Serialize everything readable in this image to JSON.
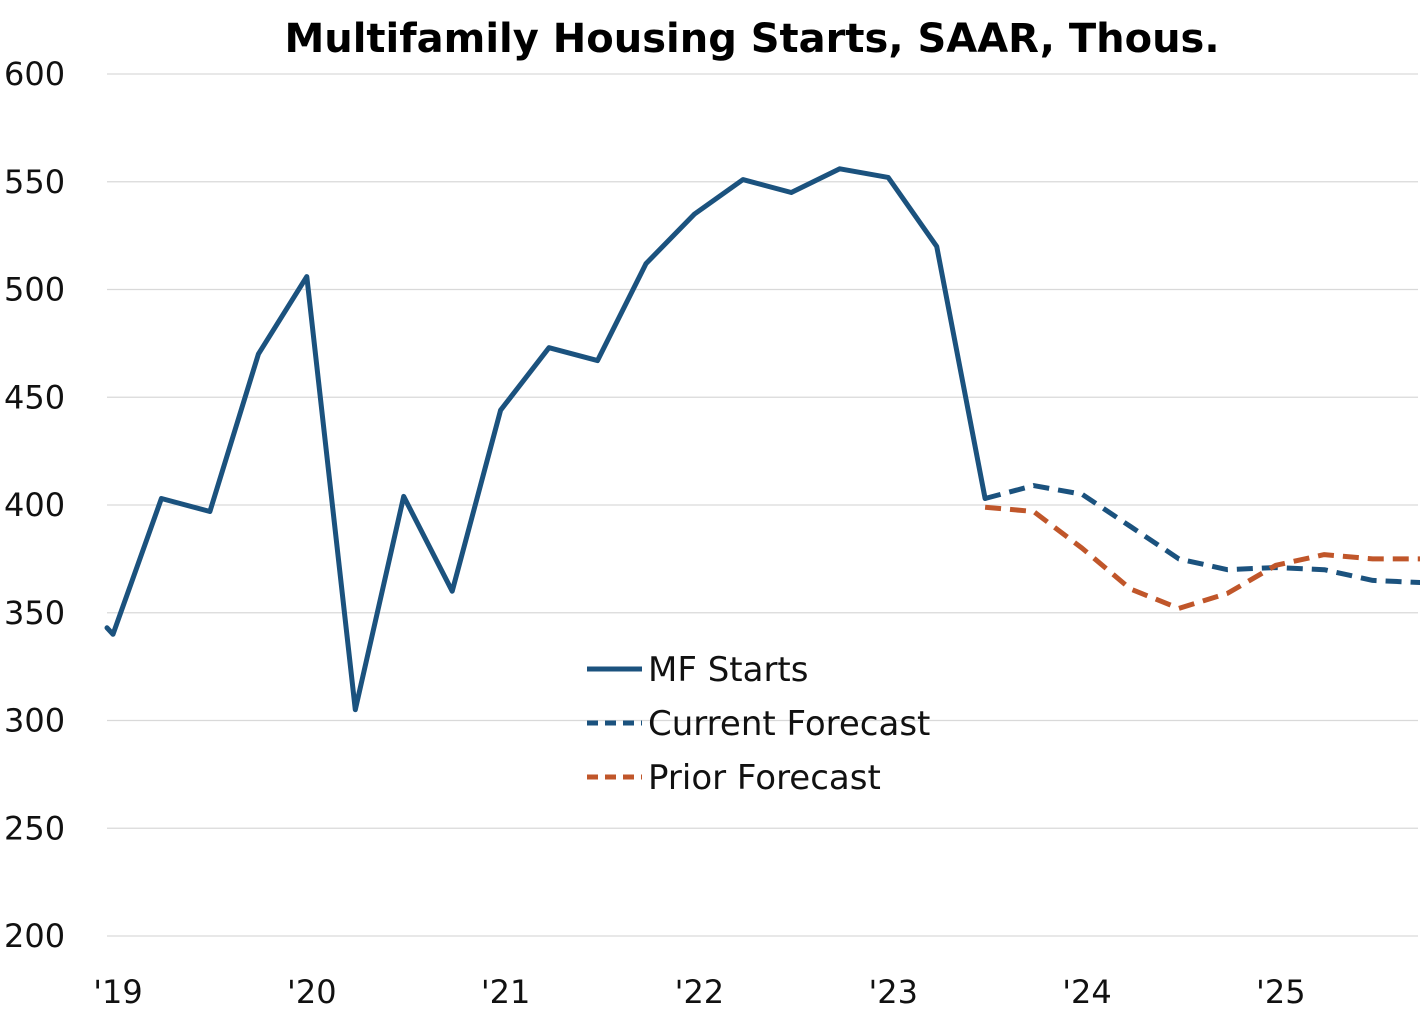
{
  "chart_data": {
    "type": "line",
    "title": "Multifamily Housing Starts, SAAR, Thous.",
    "xlabel": "",
    "ylabel": "",
    "ylim": [
      200,
      600
    ],
    "yticks": [
      200,
      250,
      300,
      350,
      400,
      450,
      500,
      550,
      600
    ],
    "ytick_labels": [
      "200",
      "250",
      "300",
      "350",
      "400",
      "450",
      "500",
      "550",
      "600"
    ],
    "xlim": [
      "2019 Q1",
      "2025 Q4"
    ],
    "xticks": [
      {
        "label": "'19",
        "quarter_index": 0
      },
      {
        "label": "'20",
        "quarter_index": 4
      },
      {
        "label": "'21",
        "quarter_index": 8
      },
      {
        "label": "'22",
        "quarter_index": 12
      },
      {
        "label": "'23",
        "quarter_index": 16
      },
      {
        "label": "'24",
        "quarter_index": 20
      },
      {
        "label": "'25",
        "quarter_index": 24
      }
    ],
    "grid": true,
    "legend_position": "center",
    "series": [
      {
        "name": "MF Starts",
        "style": "solid",
        "color": "#1b527e",
        "points": [
          {
            "x": "2019 Q1",
            "y": 340
          },
          {
            "x": "2019 Q2",
            "y": 403
          },
          {
            "x": "2019 Q3",
            "y": 397
          },
          {
            "x": "2019 Q4",
            "y": 470
          },
          {
            "x": "2020 Q1",
            "y": 506
          },
          {
            "x": "2020 Q2",
            "y": 305
          },
          {
            "x": "2020 Q3",
            "y": 404
          },
          {
            "x": "2020 Q4",
            "y": 360
          },
          {
            "x": "2021 Q1",
            "y": 444
          },
          {
            "x": "2021 Q2",
            "y": 473
          },
          {
            "x": "2021 Q3",
            "y": 467
          },
          {
            "x": "2021 Q4",
            "y": 512
          },
          {
            "x": "2022 Q1",
            "y": 535
          },
          {
            "x": "2022 Q2",
            "y": 551
          },
          {
            "x": "2022 Q3",
            "y": 545
          },
          {
            "x": "2022 Q4",
            "y": 556
          },
          {
            "x": "2023 Q1",
            "y": 552
          },
          {
            "x": "2023 Q2",
            "y": 520
          },
          {
            "x": "2023 Q3",
            "y": 403
          }
        ]
      },
      {
        "name": "Current Forecast",
        "style": "dashed",
        "color": "#1b527e",
        "points": [
          {
            "x": "2023 Q3",
            "y": 403
          },
          {
            "x": "2023 Q4",
            "y": 409
          },
          {
            "x": "2024 Q1",
            "y": 405
          },
          {
            "x": "2024 Q2",
            "y": 390
          },
          {
            "x": "2024 Q3",
            "y": 375
          },
          {
            "x": "2024 Q4",
            "y": 370
          },
          {
            "x": "2025 Q1",
            "y": 371
          },
          {
            "x": "2025 Q2",
            "y": 370
          },
          {
            "x": "2025 Q3",
            "y": 365
          },
          {
            "x": "2025 Q4",
            "y": 364
          }
        ]
      },
      {
        "name": "Prior Forecast",
        "style": "dashed",
        "color": "#c0562a",
        "points": [
          {
            "x": "2023 Q3",
            "y": 399
          },
          {
            "x": "2023 Q4",
            "y": 397
          },
          {
            "x": "2024 Q1",
            "y": 380
          },
          {
            "x": "2024 Q2",
            "y": 361
          },
          {
            "x": "2024 Q3",
            "y": 352
          },
          {
            "x": "2024 Q4",
            "y": 359
          },
          {
            "x": "2025 Q1",
            "y": 372
          },
          {
            "x": "2025 Q2",
            "y": 377
          },
          {
            "x": "2025 Q3",
            "y": 375
          },
          {
            "x": "2025 Q4",
            "y": 375
          }
        ]
      }
    ]
  }
}
